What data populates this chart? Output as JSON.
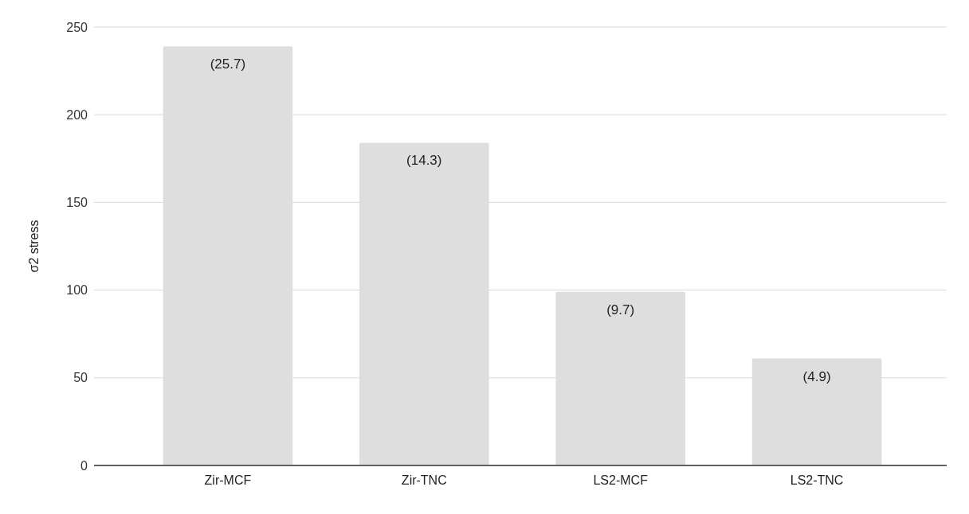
{
  "chart_data": {
    "type": "bar",
    "ylabel": "σ2 stress",
    "categories": [
      "Zir-MCF",
      "Zir-TNC",
      "LS2-MCF",
      "LS2-TNC"
    ],
    "values": [
      239,
      184,
      99,
      61
    ],
    "color": "#dedede",
    "ylim": [
      0,
      250
    ],
    "yticks": [
      0,
      50,
      100,
      150,
      200,
      250
    ],
    "grid": "y",
    "annotations": [
      {
        "text": "(25.7)",
        "x": "Zir-MCF",
        "y": 239
      },
      {
        "text": "(14.3)",
        "x": "Zir-TNC",
        "y": 184
      },
      {
        "text": "(9.7)",
        "x": "LS2-MCF",
        "y": 99
      },
      {
        "text": "(4.9)",
        "x": "LS2-TNC",
        "y": 61
      }
    ]
  }
}
